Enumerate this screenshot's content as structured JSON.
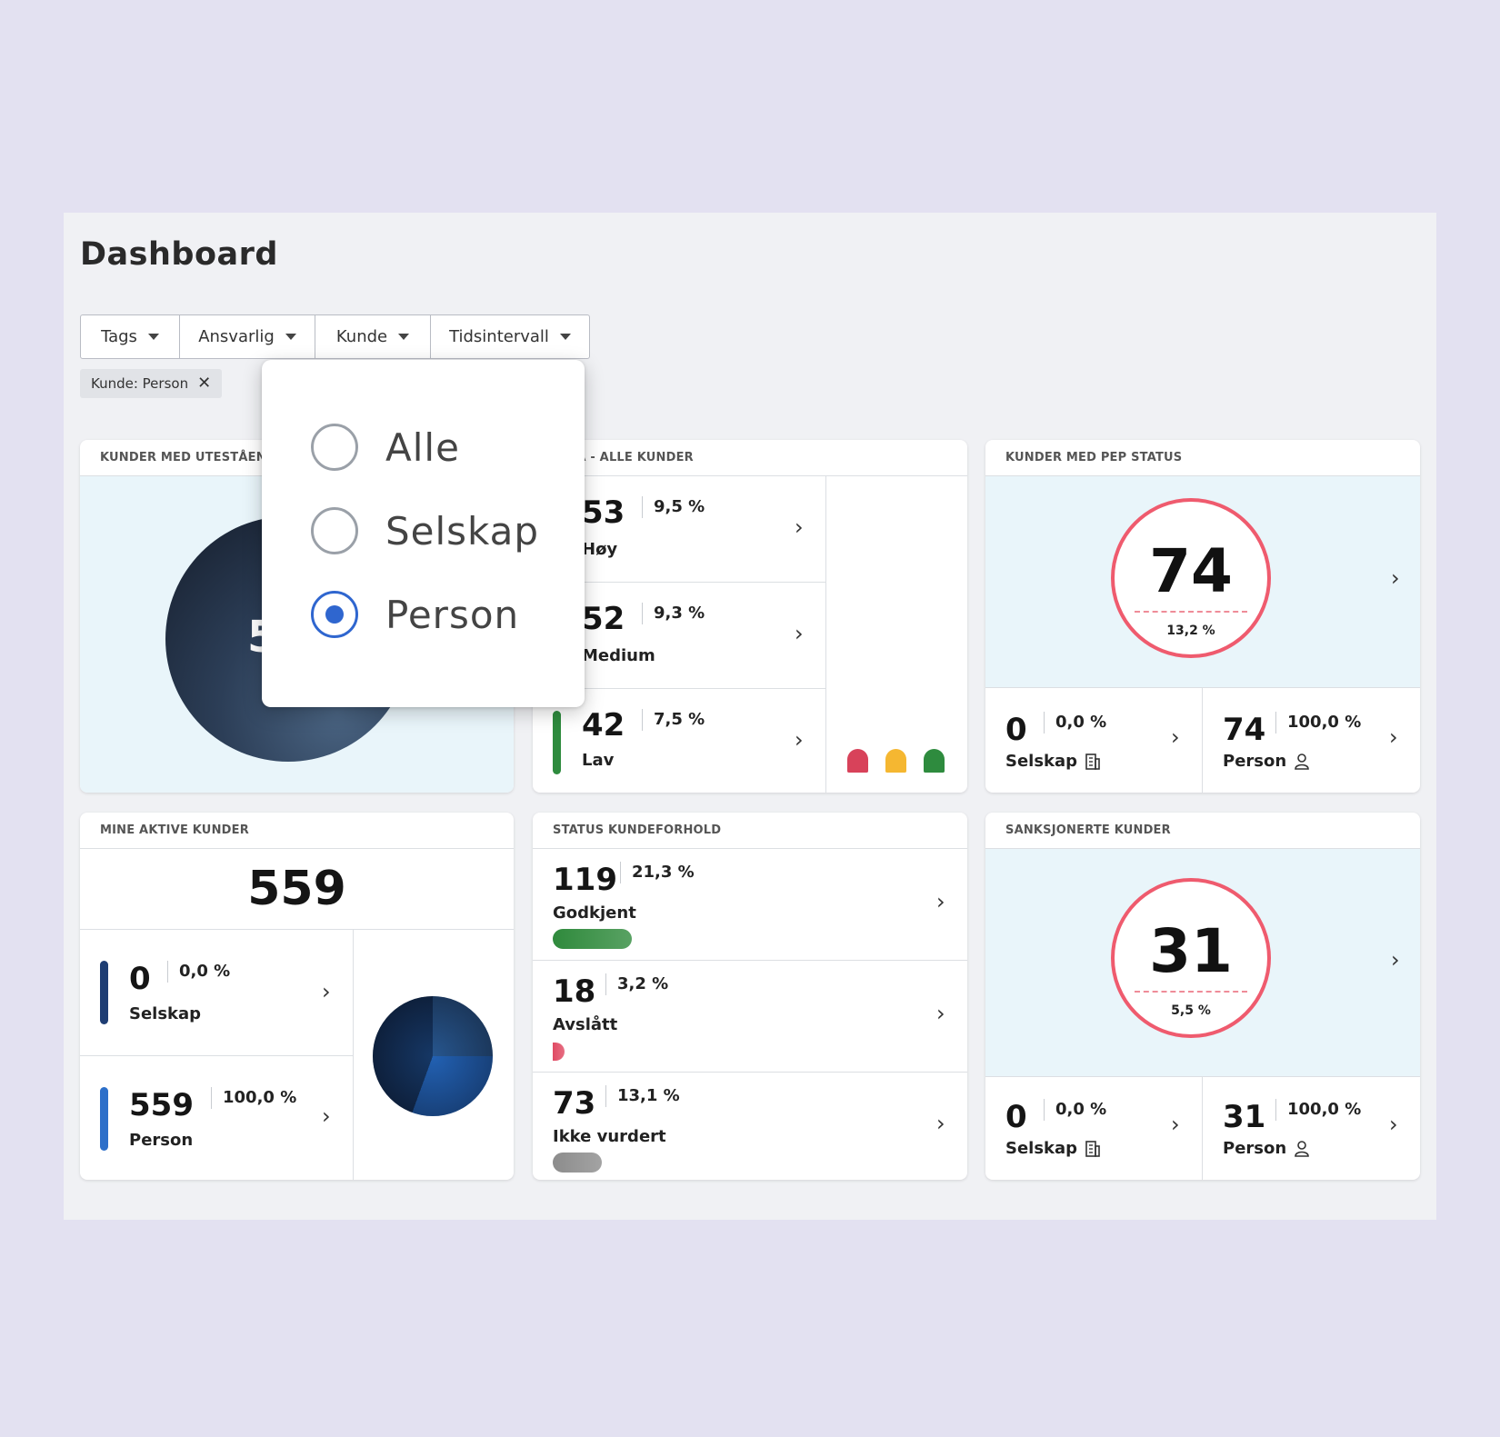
{
  "page": {
    "title": "Dashboard"
  },
  "filters": [
    {
      "label": "Tags"
    },
    {
      "label": "Ansvarlig"
    },
    {
      "label": "Kunde"
    },
    {
      "label": "Tidsintervall"
    }
  ],
  "active_chip": {
    "label": "Kunde: Person",
    "remove_icon": "close-icon"
  },
  "dropdown": {
    "options": [
      {
        "label": "Alle",
        "selected": false
      },
      {
        "label": "Selskap",
        "selected": false
      },
      {
        "label": "Person",
        "selected": true
      }
    ]
  },
  "cards": {
    "utestaende": {
      "title": "KUNDER MED UTESTÅENDE",
      "donut_value_partial": "5"
    },
    "risiko": {
      "title": "NIVÅ - ALLE KUNDER",
      "rows": [
        {
          "value": "53",
          "pct": "9,5 %",
          "label": "Høy",
          "color": "#d8425a"
        },
        {
          "value": "52",
          "pct": "9,3 %",
          "label": "Medium",
          "color": "#f5a623"
        },
        {
          "value": "42",
          "pct": "7,5 %",
          "label": "Lav",
          "color": "#2e8b3e"
        }
      ],
      "markers": [
        "#d8425a",
        "#f5b731",
        "#2e8b3e"
      ]
    },
    "pep": {
      "title": "KUNDER MED PEP STATUS",
      "total": "74",
      "total_pct": "13,2 %",
      "selskap": {
        "value": "0",
        "pct": "0,0 %",
        "label": "Selskap",
        "icon": "building-icon"
      },
      "person": {
        "value": "74",
        "pct": "100,0 %",
        "label": "Person",
        "icon": "person-icon"
      }
    },
    "aktive": {
      "title": "MINE AKTIVE KUNDER",
      "total": "559",
      "selskap": {
        "value": "0",
        "pct": "0,0 %",
        "label": "Selskap",
        "color": "#1e3d73"
      },
      "person": {
        "value": "559",
        "pct": "100,0 %",
        "label": "Person",
        "color": "#2d6fc9"
      }
    },
    "status": {
      "title": "STATUS KUNDEFORHOLD",
      "rows": [
        {
          "value": "119",
          "pct": "21,3 %",
          "label": "Godkjent",
          "fraction": 0.213,
          "color": "#2f8a3c"
        },
        {
          "value": "18",
          "pct": "3,2 %",
          "label": "Avslått",
          "fraction": 0.032,
          "color": "#e04a63"
        },
        {
          "value": "73",
          "pct": "13,1 %",
          "label": "Ikke vurdert",
          "fraction": 0.131,
          "color": "#8c8c8c"
        }
      ]
    },
    "sanksjon": {
      "title": "SANKSJONERTE KUNDER",
      "total": "31",
      "total_pct": "5,5 %",
      "selskap": {
        "value": "0",
        "pct": "0,0 %",
        "label": "Selskap",
        "icon": "building-icon"
      },
      "person": {
        "value": "31",
        "pct": "100,0 %",
        "label": "Person",
        "icon": "person-icon"
      }
    }
  }
}
